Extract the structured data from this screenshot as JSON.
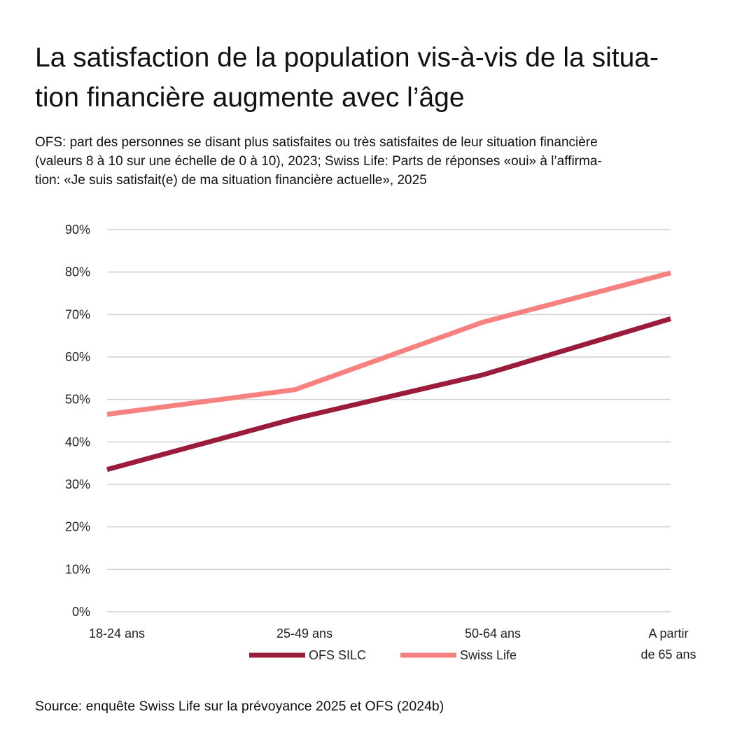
{
  "title": "La satisfaction de la population vis-à-vis de la situa-tion financière augmente avec l’âge",
  "title_lines": [
    "La satisfaction de la population vis-à-vis de la situa-",
    "tion financière augmente avec l’âge"
  ],
  "subtitle_lines": [
    "OFS: part des personnes se disant plus satisfaites ou très satisfaites de leur situation financière",
    "(valeurs 8 à 10 sur une échelle de 0 à 10), 2023; Swiss Life: Parts de réponses «oui» à l’affirma-",
    "tion: «Je suis satisfait(e) de ma situation financière actuelle», 2025"
  ],
  "source": "Source: enquête Swiss Life sur la prévoyance 2025 et OFS (2024b)",
  "chart_data": {
    "type": "line",
    "categories": [
      "18-24 ans",
      "25-49 ans",
      "50-64 ans",
      "A partir de 65 ans"
    ],
    "category_lines": [
      [
        "18-24 ans"
      ],
      [
        "25-49 ans"
      ],
      [
        "50-64 ans"
      ],
      [
        "A partir",
        "de 65 ans"
      ]
    ],
    "series": [
      {
        "name": "OFS SILC",
        "values": [
          33.5,
          45.5,
          55.8,
          69.0
        ],
        "color": "#9b1b3a"
      },
      {
        "name": "Swiss Life",
        "values": [
          46.5,
          52.3,
          68.2,
          79.8
        ],
        "color": "#f7817e"
      }
    ],
    "ylim": [
      0,
      90
    ],
    "yticks": [
      0,
      10,
      20,
      30,
      40,
      50,
      60,
      70,
      80,
      90
    ],
    "ytick_labels": [
      "0%",
      "10%",
      "20%",
      "30%",
      "40%",
      "50%",
      "60%",
      "70%",
      "80%",
      "90%"
    ],
    "grid": true,
    "legend_position": "bottom-center",
    "xlabel": "",
    "ylabel": ""
  }
}
